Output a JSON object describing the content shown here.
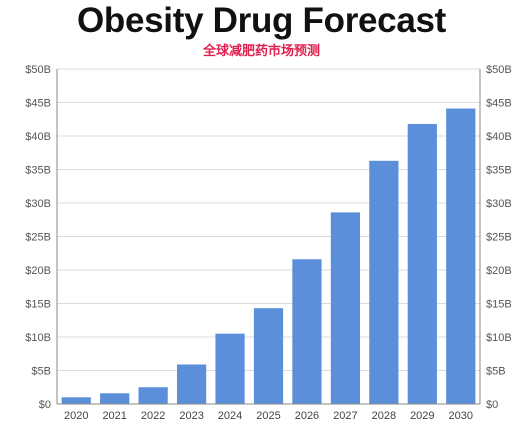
{
  "chart_data": {
    "type": "bar",
    "title": "Obesity Drug Forecast",
    "subtitle": "全球减肥药市场预测",
    "categories": [
      "2020",
      "2021",
      "2022",
      "2023",
      "2024",
      "2025",
      "2026",
      "2027",
      "2028",
      "2029",
      "2030"
    ],
    "values": [
      1.0,
      1.6,
      2.5,
      5.9,
      10.5,
      14.3,
      21.6,
      28.6,
      36.3,
      41.8,
      44.1
    ],
    "y_tick_labels": [
      "$0",
      "$5B",
      "$10B",
      "$15B",
      "$20B",
      "$25B",
      "$30B",
      "$35B",
      "$40B",
      "$45B",
      "$50B"
    ],
    "ylim": [
      0,
      50
    ],
    "y_step": 5,
    "grid": true,
    "y_axis_both_sides": true,
    "bar_color": "#5b8fd9",
    "grid_color": "#dcdcdc"
  }
}
